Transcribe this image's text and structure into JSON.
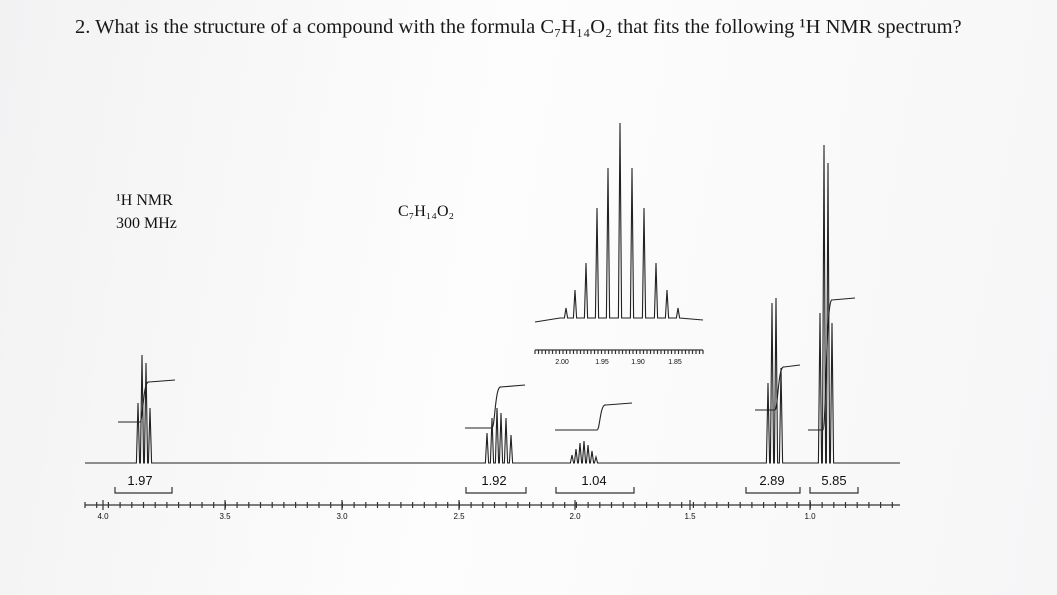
{
  "question": "2. What is the structure of a compound with the formula C₇H₁₄O₂ that fits the following ¹H NMR spectrum?",
  "spectrum": {
    "nucleus_label": "¹H NMR",
    "frequency": "300 MHz",
    "formula": "C₇H₁₄O₂",
    "inset_axis_labels": [
      "2.00",
      "1.95",
      "1.90",
      "1.85"
    ],
    "axis_labels": [
      "4.0",
      "3.5",
      "3.0",
      "2.5",
      "2.0",
      "1.5",
      "1.0"
    ],
    "integrals": [
      "1.97",
      "1.92",
      "1.04",
      "2.89",
      "5.85"
    ]
  }
}
